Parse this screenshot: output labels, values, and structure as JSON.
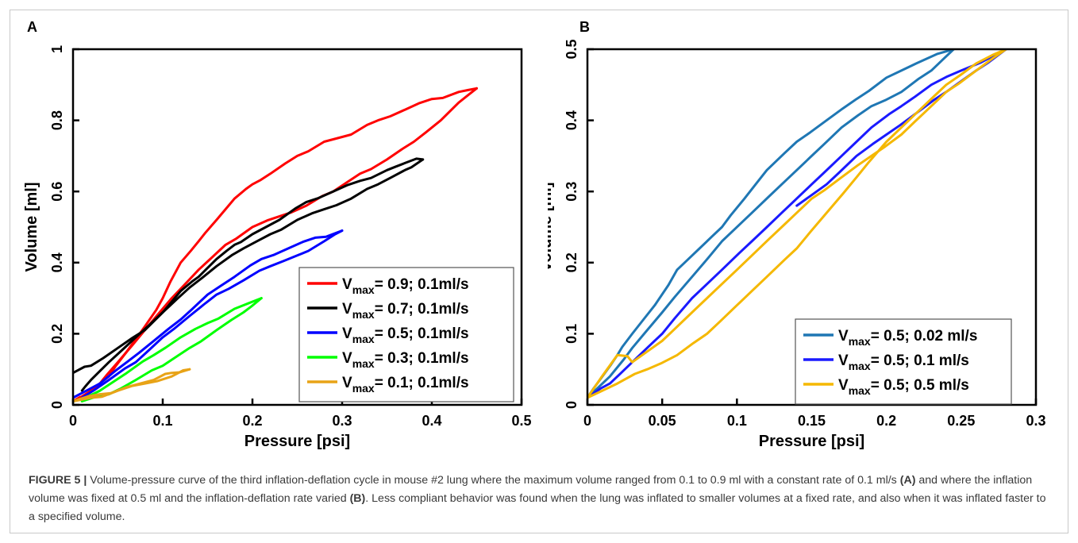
{
  "figure": {
    "caption": {
      "lead": "FIGURE 5 |",
      "part1": " Volume-pressure curve of the third inflation-deflation cycle in mouse #2 lung where the maximum volume ranged from 0.1 to 0.9 ml with a constant rate of 0.1 ml/s ",
      "refA": "(A)",
      "part2": " and where the inflation volume was fixed at 0.5 ml and the inflation-deflation rate varied ",
      "refB": "(B)",
      "part3": ". Less compliant behavior was found when the lung was inflated to smaller volumes at a fixed rate, and also when it was inflated faster to a specified volume."
    }
  },
  "chart_data": [
    {
      "panel": "A",
      "type": "line",
      "xlabel": "Pressure [psi]",
      "ylabel": "Volume [ml]",
      "xlim": [
        0,
        0.5
      ],
      "ylim": [
        0,
        1
      ],
      "xticks": [
        0,
        0.1,
        0.2,
        0.3,
        0.4,
        0.5
      ],
      "xtick_labels": [
        "0",
        "0.1",
        "0.2",
        "0.3",
        "0.4",
        "0.5"
      ],
      "yticks": [
        0,
        0.2,
        0.4,
        0.6,
        0.8,
        1
      ],
      "ytick_labels": [
        "0",
        "0.2",
        "0.4",
        "0.6",
        "0.8",
        "1"
      ],
      "grid": false,
      "legend_position": "bottom-right",
      "series": [
        {
          "name_base": "V",
          "name_sub": "max",
          "name_rest": "= 0.9; 0.1ml/s",
          "color": "#ff0000",
          "inflation": [
            [
              0.0,
              0.01
            ],
            [
              0.02,
              0.04
            ],
            [
              0.04,
              0.08
            ],
            [
              0.06,
              0.15
            ],
            [
              0.08,
              0.22
            ],
            [
              0.1,
              0.3
            ],
            [
              0.12,
              0.4
            ],
            [
              0.14,
              0.46
            ],
            [
              0.16,
              0.52
            ],
            [
              0.18,
              0.58
            ],
            [
              0.2,
              0.62
            ],
            [
              0.22,
              0.65
            ],
            [
              0.25,
              0.7
            ],
            [
              0.28,
              0.74
            ],
            [
              0.31,
              0.76
            ],
            [
              0.34,
              0.8
            ],
            [
              0.37,
              0.83
            ],
            [
              0.4,
              0.86
            ],
            [
              0.43,
              0.88
            ],
            [
              0.45,
              0.89
            ]
          ],
          "deflation": [
            [
              0.45,
              0.89
            ],
            [
              0.43,
              0.85
            ],
            [
              0.41,
              0.8
            ],
            [
              0.38,
              0.74
            ],
            [
              0.35,
              0.69
            ],
            [
              0.32,
              0.65
            ],
            [
              0.29,
              0.6
            ],
            [
              0.26,
              0.56
            ],
            [
              0.23,
              0.53
            ],
            [
              0.2,
              0.5
            ],
            [
              0.17,
              0.45
            ],
            [
              0.14,
              0.38
            ],
            [
              0.11,
              0.3
            ],
            [
              0.08,
              0.21
            ],
            [
              0.05,
              0.12
            ],
            [
              0.03,
              0.06
            ],
            [
              0.01,
              0.02
            ],
            [
              0.0,
              0.01
            ]
          ]
        },
        {
          "name_base": "V",
          "name_sub": "max",
          "name_rest": "= 0.7; 0.1ml/s",
          "color": "#000000",
          "inflation": [
            [
              0.0,
              0.09
            ],
            [
              0.02,
              0.11
            ],
            [
              0.05,
              0.16
            ],
            [
              0.08,
              0.21
            ],
            [
              0.1,
              0.26
            ],
            [
              0.12,
              0.32
            ],
            [
              0.14,
              0.36
            ],
            [
              0.16,
              0.41
            ],
            [
              0.18,
              0.45
            ],
            [
              0.2,
              0.48
            ],
            [
              0.23,
              0.52
            ],
            [
              0.26,
              0.57
            ],
            [
              0.29,
              0.6
            ],
            [
              0.32,
              0.63
            ],
            [
              0.35,
              0.66
            ],
            [
              0.37,
              0.68
            ],
            [
              0.39,
              0.69
            ]
          ],
          "deflation": [
            [
              0.39,
              0.69
            ],
            [
              0.37,
              0.66
            ],
            [
              0.34,
              0.62
            ],
            [
              0.31,
              0.58
            ],
            [
              0.28,
              0.55
            ],
            [
              0.25,
              0.52
            ],
            [
              0.22,
              0.48
            ],
            [
              0.19,
              0.44
            ],
            [
              0.16,
              0.39
            ],
            [
              0.13,
              0.33
            ],
            [
              0.1,
              0.26
            ],
            [
              0.07,
              0.19
            ],
            [
              0.04,
              0.12
            ],
            [
              0.02,
              0.07
            ],
            [
              0.01,
              0.04
            ]
          ]
        },
        {
          "name_base": "V",
          "name_sub": "max",
          "name_rest": "= 0.5; 0.1ml/s",
          "color": "#0000ff",
          "inflation": [
            [
              0.0,
              0.02
            ],
            [
              0.03,
              0.06
            ],
            [
              0.06,
              0.12
            ],
            [
              0.09,
              0.18
            ],
            [
              0.12,
              0.24
            ],
            [
              0.15,
              0.31
            ],
            [
              0.18,
              0.36
            ],
            [
              0.21,
              0.41
            ],
            [
              0.24,
              0.44
            ],
            [
              0.27,
              0.47
            ],
            [
              0.3,
              0.49
            ]
          ],
          "deflation": [
            [
              0.3,
              0.49
            ],
            [
              0.28,
              0.46
            ],
            [
              0.25,
              0.42
            ],
            [
              0.22,
              0.39
            ],
            [
              0.19,
              0.35
            ],
            [
              0.16,
              0.31
            ],
            [
              0.13,
              0.25
            ],
            [
              0.1,
              0.19
            ],
            [
              0.07,
              0.12
            ],
            [
              0.04,
              0.07
            ],
            [
              0.01,
              0.02
            ]
          ]
        },
        {
          "name_base": "V",
          "name_sub": "max",
          "name_rest": "= 0.3; 0.1ml/s",
          "color": "#00ff00",
          "inflation": [
            [
              0.0,
              0.01
            ],
            [
              0.03,
              0.04
            ],
            [
              0.06,
              0.09
            ],
            [
              0.09,
              0.14
            ],
            [
              0.12,
              0.19
            ],
            [
              0.15,
              0.23
            ],
            [
              0.18,
              0.27
            ],
            [
              0.21,
              0.3
            ]
          ],
          "deflation": [
            [
              0.21,
              0.3
            ],
            [
              0.19,
              0.26
            ],
            [
              0.16,
              0.21
            ],
            [
              0.13,
              0.16
            ],
            [
              0.1,
              0.11
            ],
            [
              0.07,
              0.07
            ],
            [
              0.04,
              0.03
            ],
            [
              0.01,
              0.01
            ]
          ]
        },
        {
          "name_base": "V",
          "name_sub": "max",
          "name_rest": "= 0.1; 0.1ml/s",
          "color": "#e8a317",
          "inflation": [
            [
              0.0,
              0.01
            ],
            [
              0.03,
              0.03
            ],
            [
              0.06,
              0.05
            ],
            [
              0.09,
              0.07
            ],
            [
              0.11,
              0.09
            ],
            [
              0.13,
              0.1
            ]
          ],
          "deflation": [
            [
              0.13,
              0.1
            ],
            [
              0.11,
              0.08
            ],
            [
              0.08,
              0.06
            ],
            [
              0.05,
              0.04
            ],
            [
              0.02,
              0.02
            ],
            [
              0.0,
              0.01
            ]
          ]
        }
      ]
    },
    {
      "panel": "B",
      "type": "line",
      "xlabel": "Pressure [psi]",
      "ylabel": "Volume [ml]",
      "xlim": [
        0,
        0.3
      ],
      "ylim": [
        0,
        0.5
      ],
      "xticks": [
        0,
        0.05,
        0.1,
        0.15,
        0.2,
        0.25,
        0.3
      ],
      "xtick_labels": [
        "0",
        "0.05",
        "0.1",
        "0.15",
        "0.2",
        "0.25",
        "0.3"
      ],
      "yticks": [
        0,
        0.1,
        0.2,
        0.3,
        0.4,
        0.5
      ],
      "ytick_labels": [
        "0",
        "0.1",
        "0.2",
        "0.3",
        "0.4",
        "0.5"
      ],
      "grid": false,
      "legend_position": "bottom-right",
      "series": [
        {
          "name_base": "V",
          "name_sub": "max",
          "name_rest": "= 0.5; 0.02 ml/s",
          "color": "#1f77b4",
          "inflation": [
            [
              0.0,
              0.01
            ],
            [
              0.01,
              0.04
            ],
            [
              0.02,
              0.07
            ],
            [
              0.03,
              0.1
            ],
            [
              0.045,
              0.14
            ],
            [
              0.06,
              0.19
            ],
            [
              0.075,
              0.22
            ],
            [
              0.09,
              0.25
            ],
            [
              0.105,
              0.29
            ],
            [
              0.12,
              0.33
            ],
            [
              0.14,
              0.37
            ],
            [
              0.16,
              0.4
            ],
            [
              0.18,
              0.43
            ],
            [
              0.2,
              0.46
            ],
            [
              0.22,
              0.48
            ],
            [
              0.245,
              0.5
            ]
          ],
          "deflation": [
            [
              0.245,
              0.5
            ],
            [
              0.23,
              0.47
            ],
            [
              0.21,
              0.44
            ],
            [
              0.19,
              0.42
            ],
            [
              0.17,
              0.39
            ],
            [
              0.15,
              0.35
            ],
            [
              0.13,
              0.31
            ],
            [
              0.11,
              0.27
            ],
            [
              0.09,
              0.23
            ],
            [
              0.07,
              0.18
            ],
            [
              0.05,
              0.13
            ],
            [
              0.03,
              0.08
            ],
            [
              0.015,
              0.04
            ],
            [
              0.0,
              0.01
            ]
          ]
        },
        {
          "name_base": "V",
          "name_sub": "max",
          "name_rest": "= 0.5; 0.1 ml/s",
          "color": "#1a1aff",
          "inflation": [
            [
              0.0,
              0.01
            ],
            [
              0.015,
              0.03
            ],
            [
              0.03,
              0.06
            ],
            [
              0.05,
              0.1
            ],
            [
              0.07,
              0.15
            ],
            [
              0.09,
              0.19
            ],
            [
              0.11,
              0.23
            ],
            [
              0.13,
              0.27
            ],
            [
              0.15,
              0.31
            ],
            [
              0.17,
              0.35
            ],
            [
              0.19,
              0.39
            ],
            [
              0.21,
              0.42
            ],
            [
              0.23,
              0.45
            ],
            [
              0.25,
              0.47
            ],
            [
              0.28,
              0.5
            ]
          ],
          "deflation": [
            [
              0.28,
              0.5
            ],
            [
              0.26,
              0.47
            ],
            [
              0.24,
              0.44
            ],
            [
              0.22,
              0.41
            ],
            [
              0.2,
              0.38
            ],
            [
              0.18,
              0.35
            ],
            [
              0.16,
              0.31
            ],
            [
              0.14,
              0.28
            ]
          ]
        },
        {
          "name_base": "V",
          "name_sub": "max",
          "name_rest": "= 0.5; 0.5 ml/s",
          "color": "#f5b800",
          "inflation": [
            [
              0.0,
              0.01
            ],
            [
              0.02,
              0.03
            ],
            [
              0.04,
              0.05
            ],
            [
              0.06,
              0.07
            ],
            [
              0.08,
              0.1
            ],
            [
              0.1,
              0.14
            ],
            [
              0.12,
              0.18
            ],
            [
              0.14,
              0.22
            ],
            [
              0.16,
              0.27
            ],
            [
              0.18,
              0.32
            ],
            [
              0.2,
              0.37
            ],
            [
              0.22,
              0.41
            ],
            [
              0.24,
              0.45
            ],
            [
              0.26,
              0.48
            ],
            [
              0.28,
              0.5
            ]
          ],
          "deflation": [
            [
              0.28,
              0.5
            ],
            [
              0.26,
              0.47
            ],
            [
              0.24,
              0.44
            ],
            [
              0.225,
              0.41
            ],
            [
              0.21,
              0.38
            ],
            [
              0.19,
              0.35
            ],
            [
              0.17,
              0.32
            ],
            [
              0.15,
              0.29
            ],
            [
              0.13,
              0.25
            ],
            [
              0.11,
              0.21
            ],
            [
              0.09,
              0.17
            ],
            [
              0.07,
              0.13
            ],
            [
              0.05,
              0.09
            ],
            [
              0.03,
              0.06
            ],
            [
              0.02,
              0.07
            ],
            [
              0.0,
              0.01
            ]
          ]
        }
      ]
    }
  ]
}
